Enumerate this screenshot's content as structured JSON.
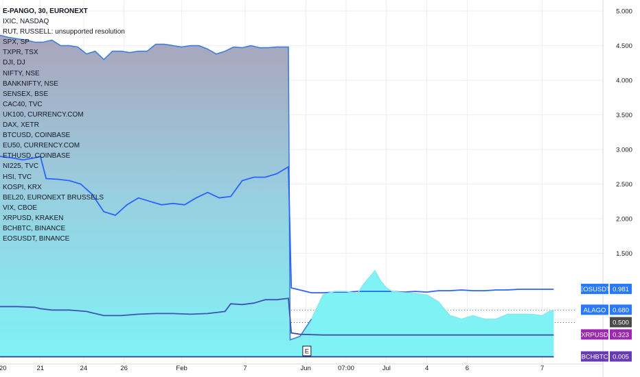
{
  "legend": {
    "title": "E-PANGO, 30, EURONEXT",
    "items": [
      "IXIC, NASDAQ",
      "RUT, RUSSELL: unsupported resolution",
      "SPX, SP",
      "TXPR, TSX",
      "DJI, DJ",
      "NIFTY, NSE",
      "BANKNIFTY, NSE",
      "SENSEX, BSE",
      "CAC40, TVC",
      "UK100, CURRENCY.COM",
      "DAX, XETR",
      "BTCUSD, COINBASE",
      "EU50, CURRENCY.COM",
      "ETHUSD, COINBASE",
      "NI225, TVC",
      "HSI, TVC",
      "KOSPI, KRX",
      "BEL20, EURONEXT BRUSSELS",
      "VIX, CBOE",
      "XRPUSD, KRAKEN",
      "BCHBTC, BINANCE",
      "EOSUSDT, BINANCE"
    ]
  },
  "chart_data": {
    "type": "area",
    "x_tick_labels": [
      "20",
      "21",
      "24",
      "26",
      "Feb",
      "7",
      "Jun",
      "07:00",
      "Jul",
      "4",
      "6",
      "7"
    ],
    "y_tick_labels": [
      "5.000",
      "4.500",
      "4.000",
      "3.500",
      "3.000",
      "2.500",
      "2.000",
      "1.500"
    ],
    "ylim": [
      0,
      5.1
    ],
    "xlim": [
      0,
      100
    ],
    "event_marker": "E",
    "series": [
      {
        "name": "E-PANGO",
        "style": "area",
        "color": "#3d7fd6",
        "x": [
          0,
          1.5,
          3,
          4.5,
          6,
          7.5,
          9,
          10.5,
          12,
          13.5,
          15,
          16.5,
          18,
          19.5,
          21,
          22.5,
          24,
          25.5,
          27,
          28.5,
          30,
          31.5,
          33,
          34.5,
          36,
          37.5,
          39,
          40.5,
          42,
          43.5,
          45,
          46.5,
          48,
          50,
          50.3,
          52,
          54
        ],
        "values": [
          4.65,
          4.62,
          4.6,
          4.58,
          4.55,
          4.55,
          4.58,
          4.5,
          4.5,
          4.48,
          4.38,
          4.42,
          4.3,
          4.42,
          4.42,
          4.4,
          4.42,
          4.42,
          4.52,
          4.52,
          4.5,
          4.48,
          4.5,
          4.5,
          4.45,
          4.38,
          4.42,
          4.48,
          4.47,
          4.5,
          4.47,
          4.47,
          4.48,
          4.48,
          0.25,
          0.3,
          0.55
        ]
      },
      {
        "name": "EOSUSDT",
        "style": "line",
        "color": "#2962ff",
        "x": [
          0,
          2,
          4,
          6,
          7,
          8,
          10,
          12,
          14,
          16,
          18,
          20,
          22,
          24,
          26,
          28,
          30,
          32,
          34,
          36,
          38,
          40,
          42,
          44,
          46,
          48,
          50,
          50.5,
          52,
          54,
          56,
          58,
          60,
          62,
          64,
          66,
          68,
          70,
          72,
          74,
          76,
          78,
          80,
          82,
          84,
          86,
          88,
          90,
          92,
          94,
          96
        ],
        "values": [
          2.9,
          2.88,
          2.85,
          2.88,
          2.9,
          2.58,
          2.57,
          2.55,
          2.5,
          2.35,
          2.1,
          2.05,
          2.2,
          2.3,
          2.25,
          2.2,
          2.22,
          2.2,
          2.3,
          2.38,
          2.3,
          2.32,
          2.55,
          2.6,
          2.6,
          2.65,
          2.75,
          1.0,
          0.97,
          0.93,
          0.93,
          0.94,
          0.94,
          0.95,
          0.95,
          0.95,
          0.95,
          0.94,
          0.95,
          0.94,
          0.96,
          0.96,
          0.97,
          0.96,
          0.96,
          0.97,
          0.97,
          0.98,
          0.98,
          0.98,
          0.98
        ]
      },
      {
        "name": "ALAGO",
        "style": "area",
        "color": "#8ee8e8",
        "x": [
          54,
          56,
          58,
          60,
          62,
          63,
          64,
          65,
          66,
          67,
          68,
          70,
          72,
          74,
          76,
          78,
          80,
          82,
          84,
          86,
          88,
          90,
          92,
          94,
          95,
          96
        ],
        "values": [
          0.55,
          0.9,
          0.95,
          0.95,
          0.92,
          1.05,
          1.15,
          1.25,
          1.1,
          1.0,
          0.95,
          0.93,
          0.92,
          0.9,
          0.8,
          0.6,
          0.55,
          0.6,
          0.55,
          0.55,
          0.62,
          0.62,
          0.62,
          0.6,
          0.65,
          0.68
        ]
      },
      {
        "name": "XRPUSD",
        "style": "line",
        "color": "#3f51b5",
        "x": [
          0,
          3,
          6,
          7,
          9,
          12,
          15,
          18,
          21,
          24,
          27,
          30,
          33,
          36,
          39,
          40,
          42,
          44,
          46,
          48,
          50,
          50.5,
          52,
          56,
          60,
          70,
          80,
          90,
          96
        ],
        "values": [
          0.73,
          0.73,
          0.72,
          0.7,
          0.68,
          0.68,
          0.66,
          0.6,
          0.6,
          0.62,
          0.63,
          0.63,
          0.62,
          0.63,
          0.66,
          0.77,
          0.76,
          0.78,
          0.83,
          0.83,
          0.85,
          0.35,
          0.33,
          0.32,
          0.32,
          0.32,
          0.32,
          0.32,
          0.32
        ]
      },
      {
        "name": "BCHBTC",
        "style": "line",
        "color": "#2a3d8f",
        "x": [
          0,
          96
        ],
        "values": [
          0.005,
          0.005
        ]
      }
    ],
    "price_tags": [
      {
        "label": "EOSUSDT",
        "value": "0.981",
        "y": 0.981,
        "color": "#2979ff"
      },
      {
        "label": "ALAGO",
        "value": "0.680",
        "y": 0.68,
        "color": "#2979ff"
      },
      {
        "label": "",
        "value": "0.500",
        "y": 0.5,
        "color": "#4a4a4a"
      },
      {
        "label": "XRPUSD",
        "value": "0.323",
        "y": 0.323,
        "color": "#9c27b0"
      },
      {
        "label": "BCHBTC",
        "value": "0.005",
        "y": 0.005,
        "color": "#673ab7"
      }
    ]
  }
}
